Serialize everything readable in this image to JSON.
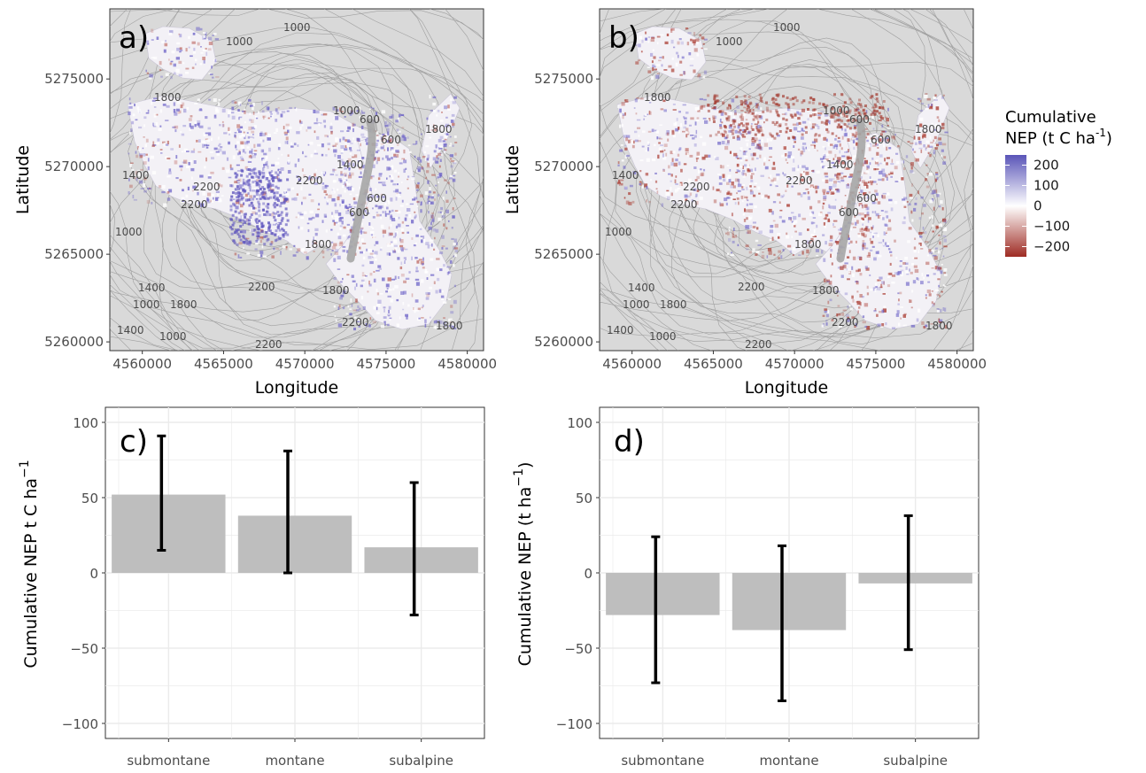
{
  "chart_data": [
    {
      "type": "heatmap",
      "panel_label": "a)",
      "xlabel": "Longitude",
      "ylabel": "Latitude",
      "xlim": [
        4558000,
        4581000
      ],
      "ylim": [
        5259500,
        5279000
      ],
      "xticks": [
        4560000,
        4565000,
        4570000,
        4575000,
        4580000
      ],
      "yticks": [
        5260000,
        5265000,
        5270000,
        5275000
      ],
      "xtick_labels": [
        "4560000",
        "4565000",
        "4570000",
        "4575000",
        "4580000"
      ],
      "ytick_labels": [
        "5260000",
        "5265000",
        "5270000",
        "5275000"
      ],
      "contour_labels": [
        "1000",
        "1000",
        "1800",
        "1000",
        "600",
        "1800",
        "600",
        "1400",
        "1400",
        "2200",
        "2200",
        "2200",
        "1000",
        "600",
        "600",
        "1800",
        "1400",
        "1000",
        "1800",
        "2200",
        "1800",
        "2200",
        "1800",
        "1400",
        "1000",
        "2200"
      ]
    },
    {
      "type": "heatmap",
      "panel_label": "b)",
      "xlabel": "Longitude",
      "ylabel": "Latitude",
      "xlim": [
        4558000,
        4581000
      ],
      "ylim": [
        5259500,
        5279000
      ],
      "xticks": [
        4560000,
        4565000,
        4570000,
        4575000,
        4580000
      ],
      "yticks": [
        5260000,
        5265000,
        5270000,
        5275000
      ],
      "xtick_labels": [
        "4560000",
        "4565000",
        "4570000",
        "4575000",
        "4580000"
      ],
      "ytick_labels": [
        "5260000",
        "5265000",
        "5270000",
        "5275000"
      ],
      "contour_labels": [
        "1000",
        "1000",
        "1800",
        "1000",
        "600",
        "1800",
        "600",
        "1400",
        "1400",
        "2200",
        "2200",
        "2200",
        "1000",
        "600",
        "600",
        "1800",
        "1400",
        "1000",
        "1800",
        "2200",
        "1800",
        "2200",
        "1800",
        "1400",
        "1000",
        "2200"
      ]
    },
    {
      "type": "bar",
      "panel_label": "c)",
      "categories": [
        "submontane",
        "montane",
        "subalpine"
      ],
      "values": [
        52,
        38,
        17
      ],
      "error_low": [
        15,
        0,
        -28
      ],
      "error_high": [
        91,
        81,
        60
      ],
      "ylabel_main": "Cumulative NEP t C ha",
      "ylabel_sup": "−1",
      "ylabel_close": "",
      "ylim": [
        -110,
        110
      ],
      "yticks": [
        -100,
        -50,
        0,
        50,
        100
      ],
      "ytick_labels": [
        "−100",
        "−50",
        "0",
        "50",
        "100"
      ],
      "bar_color": "#bebebe"
    },
    {
      "type": "bar",
      "panel_label": "d)",
      "categories": [
        "submontane",
        "montane",
        "subalpine"
      ],
      "values": [
        -28,
        -38,
        -7
      ],
      "error_low": [
        -73,
        -85,
        -51
      ],
      "error_high": [
        24,
        18,
        38
      ],
      "ylabel_main": "Cumulative NEP (t ha",
      "ylabel_sup": "−1",
      "ylabel_close": ")",
      "ylim": [
        -110,
        110
      ],
      "yticks": [
        -100,
        -50,
        0,
        50,
        100
      ],
      "ytick_labels": [
        "−100",
        "−50",
        "0",
        "50",
        "100"
      ],
      "bar_color": "#bebebe"
    }
  ],
  "legend": {
    "title_line1": "Cumulative",
    "title_line2_a": "NEP (t C ha",
    "title_line2_sup": "-1",
    "title_line2_b": ")",
    "breaks": [
      200,
      100,
      0,
      -100,
      -200
    ],
    "break_labels": [
      "200",
      "100",
      "0",
      "−100",
      "−200"
    ],
    "range": [
      -250,
      250
    ],
    "colors": {
      "high": "#5a55b8",
      "mid": "#ffffff",
      "low": "#9e2b23"
    }
  },
  "colors": {
    "panel_bg": "#d9d9d9",
    "contour": "#8c8c8c",
    "river": "#a6a6a6",
    "error_bar": "#000000",
    "grid": "#ebebeb"
  }
}
